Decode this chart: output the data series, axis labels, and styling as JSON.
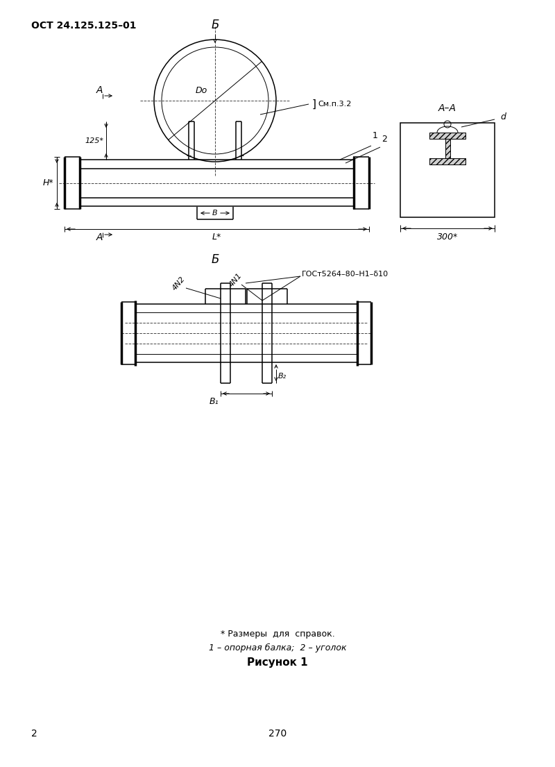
{
  "title": "ОСТ 24.125.125–01",
  "background_color": "#ffffff",
  "line_color": "#000000",
  "page_num": "2",
  "page_center_num": "270",
  "fig_caption": "Рисунок 1",
  "note1": "* Размеры  для  справок.",
  "note2": "1 – опорная балка;  2 – уголок",
  "view_label_B_top": "Б",
  "view_label_B_bot": "Б",
  "view_label_AA": "А–А",
  "label_A": "А",
  "dim_B": "B",
  "dim_L": "L*",
  "dim_H": "H*",
  "dim_125": "125*",
  "dim_300": "300*",
  "dim_d": "d",
  "label_Do": "Do",
  "label_seep": "См.п.3.2",
  "label_1": "1",
  "label_2": "2",
  "gost_label": "ГОСт5264–80–Н1–δ10",
  "label_4N2": "4N2",
  "label_4N1": "4N1",
  "dim_B2": "B₂",
  "dim_B1": "B₁"
}
